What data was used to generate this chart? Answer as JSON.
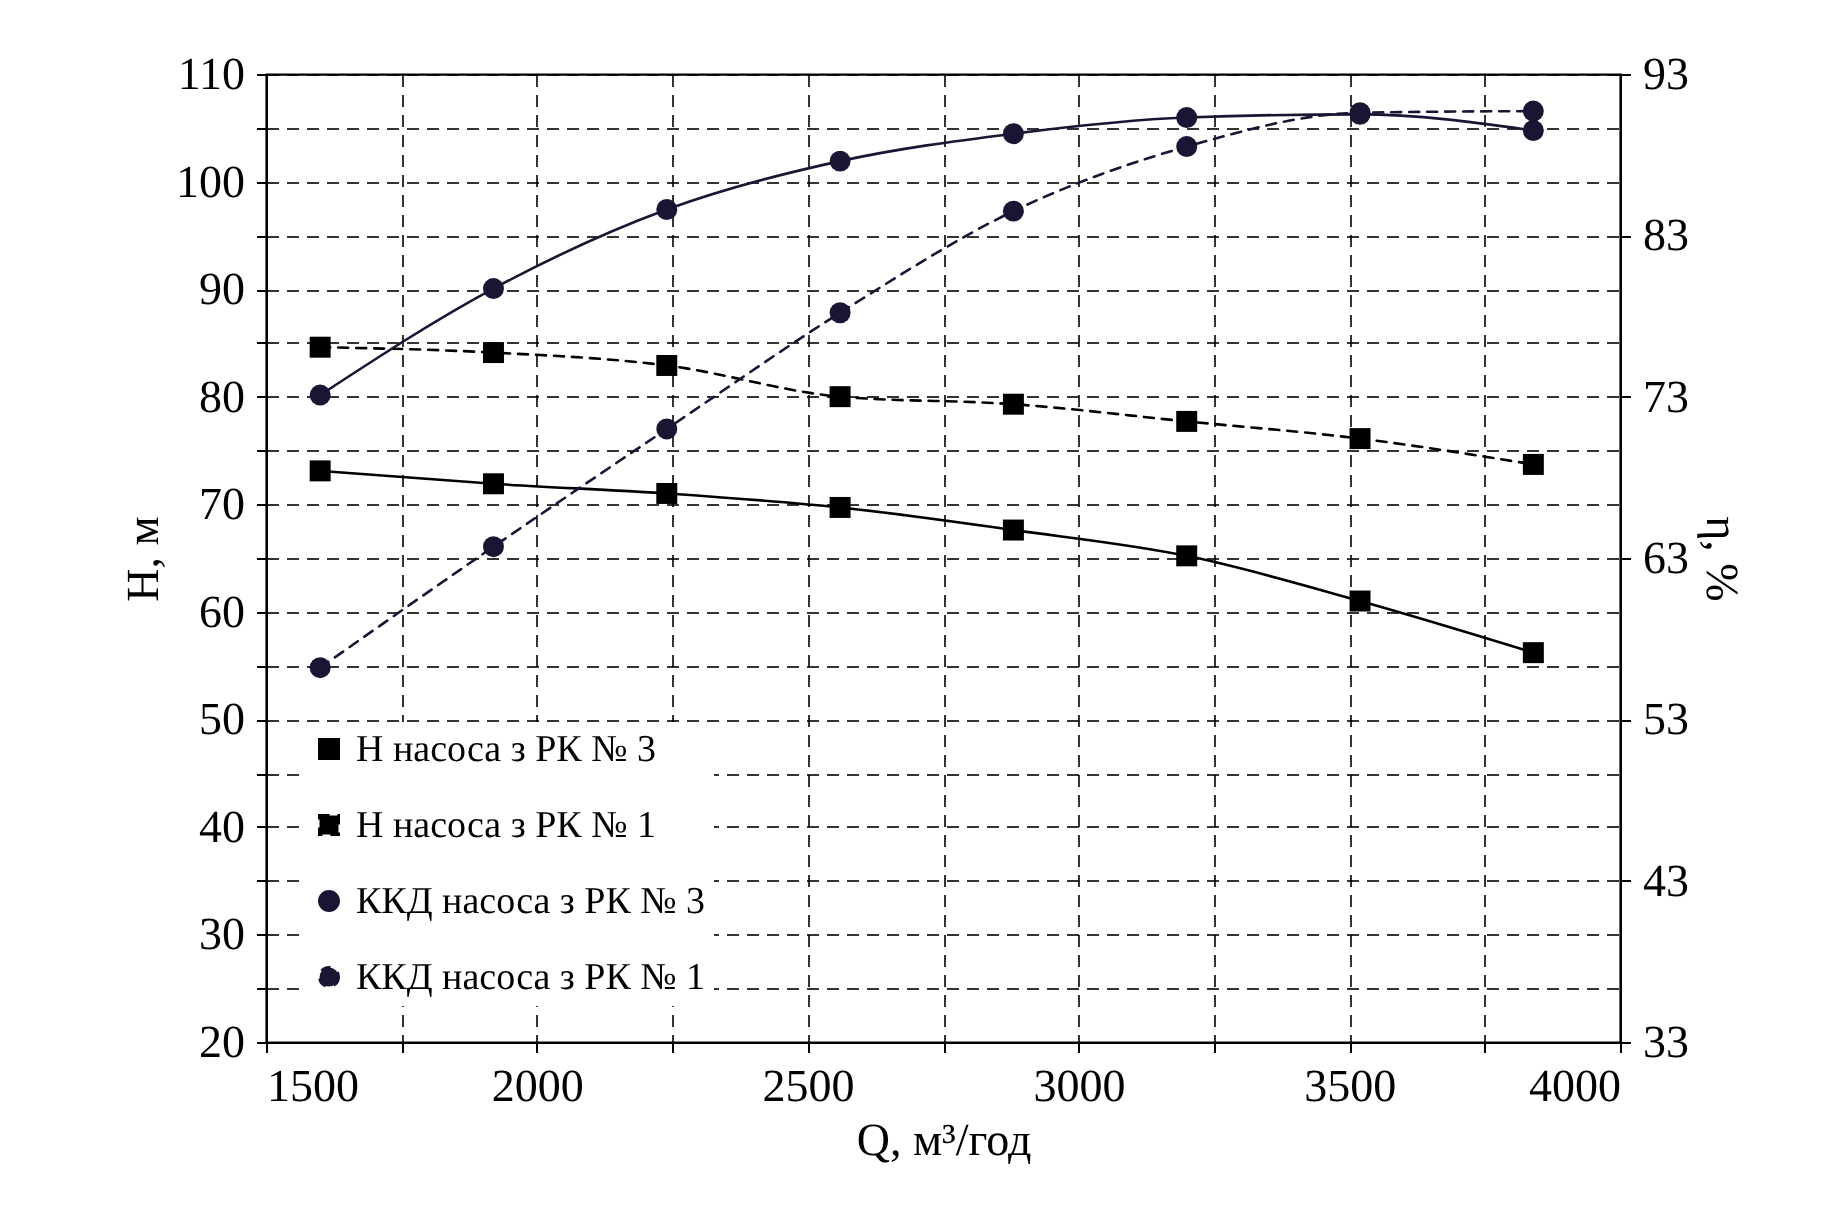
{
  "chart_data": {
    "type": "line",
    "xlabel": "Q, м³/год",
    "ylabel": "H, м",
    "y2label": "η, %",
    "x": [
      1600,
      1920,
      2240,
      2560,
      2880,
      3200,
      3520,
      3840
    ],
    "series": [
      {
        "name": "H насоса з РК № 3",
        "color": "#000000",
        "marker": "square",
        "line_style": "solid",
        "values": [
          73.1,
          71.9,
          71.0,
          69.7,
          67.6,
          65.2,
          61.0,
          56.2
        ]
      },
      {
        "name": "H насоса з РК № 1",
        "color": "#000000",
        "marker": "square",
        "line_style": "dashed",
        "values": [
          84.6,
          84.1,
          82.9,
          80.0,
          79.3,
          77.7,
          76.1,
          73.7
        ]
      },
      {
        "name": "ККД насоса з РК № 3",
        "color": "#1c1433",
        "marker": "circle",
        "line_style": "solid",
        "axis": "y2",
        "values": [
          73.1,
          79.7,
          84.6,
          87.6,
          89.3,
          90.3,
          90.5,
          89.5
        ]
      },
      {
        "name": "ККД насоса з РК № 1",
        "color": "#1c1433",
        "marker": "circle",
        "line_style": "dashed",
        "axis": "y2",
        "values": [
          56.2,
          63.7,
          71.0,
          78.2,
          84.5,
          88.5,
          90.6,
          90.7
        ]
      }
    ],
    "xlim": [
      1500,
      4000
    ],
    "xticks": [
      1500,
      {
        "value": 1750,
        "label": null
      },
      2000,
      {
        "value": 2250,
        "label": null
      },
      2500,
      {
        "value": 2750,
        "label": null
      },
      3000,
      {
        "value": 3250,
        "label": null
      },
      3500,
      {
        "value": 3750,
        "label": null
      },
      4000
    ],
    "ylim": [
      20,
      110
    ],
    "yticks": [
      20,
      {
        "value": 25,
        "label": null
      },
      30,
      {
        "value": 35,
        "label": null
      },
      40,
      {
        "value": 45,
        "label": null
      },
      50,
      {
        "value": 55,
        "label": null
      },
      60,
      {
        "value": 65,
        "label": null
      },
      70,
      {
        "value": 75,
        "label": null
      },
      80,
      {
        "value": 85,
        "label": null
      },
      90,
      {
        "value": 95,
        "label": null
      },
      100,
      {
        "value": 105,
        "label": null
      },
      110
    ],
    "y2lim": [
      33,
      93
    ],
    "y2ticks": [
      33,
      43,
      53,
      63,
      73,
      83,
      93
    ],
    "grid": true,
    "legend": "bottom left"
  }
}
